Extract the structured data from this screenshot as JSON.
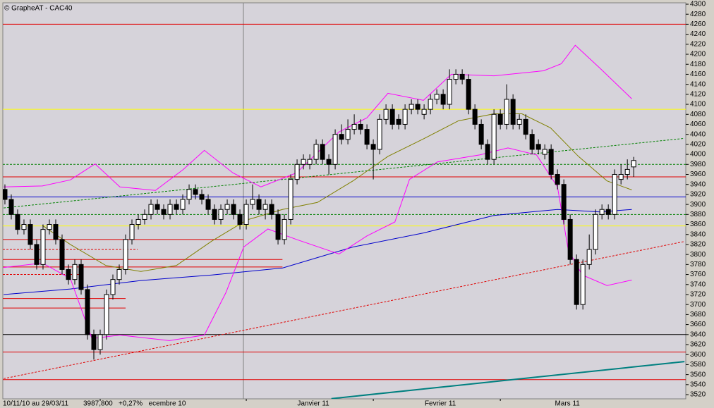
{
  "chart_data": {
    "type": "candlestick",
    "title": "© GrapheAT - CAC40",
    "period": "10/11/10 au 29/03/11",
    "last": "3987,800",
    "change": "+0,27%",
    "xlim": [
      -0.33,
      107.2
    ],
    "ylim": [
      3511.6,
      4302.8
    ],
    "yticks": [
      3520,
      3540,
      3560,
      3580,
      3600,
      3620,
      3640,
      3660,
      3680,
      3700,
      3720,
      3740,
      3760,
      3780,
      3800,
      3820,
      3840,
      3860,
      3880,
      3900,
      3920,
      3940,
      3960,
      3980,
      4000,
      4020,
      4040,
      4060,
      4080,
      4100,
      4120,
      4140,
      4160,
      4180,
      4200,
      4220,
      4240,
      4260,
      4280,
      4300
    ],
    "xticks": [
      {
        "value": 15,
        "label": "ecembre 10"
      },
      {
        "value": 38,
        "label": "Janvier 11"
      },
      {
        "value": 58,
        "label": "Fevrier 11"
      },
      {
        "value": 78,
        "label": "Mars 11"
      }
    ],
    "up_color": "#ffffff",
    "down_color": "#000000",
    "open": [
      3930,
      3910,
      3880,
      3850,
      3860,
      3820,
      3780,
      3850,
      3860,
      3830,
      3770,
      3750,
      3780,
      3730,
      3640,
      3610,
      3640,
      3720,
      3750,
      3770,
      3830,
      3860,
      3870,
      3880,
      3900,
      3890,
      3880,
      3900,
      3890,
      3910,
      3930,
      3920,
      3910,
      3890,
      3870,
      3890,
      3900,
      3880,
      3860,
      3900,
      3910,
      3890,
      3900,
      3880,
      3830,
      3870,
      3950,
      3980,
      3980,
      3990,
      4020,
      3990,
      3980,
      4040,
      4030,
      4050,
      4060,
      4050,
      4020,
      4010,
      4070,
      4090,
      4070,
      4060,
      4090,
      4100,
      4080,
      4090,
      4110,
      4120,
      4100,
      4150,
      4160,
      4150,
      4090,
      4060,
      4020,
      3990,
      4080,
      4060,
      4110,
      4060,
      4070,
      4040,
      4020,
      4000,
      4010,
      3960,
      3940,
      3870,
      3790,
      3700,
      3780,
      3810,
      3880,
      3890,
      3880,
      3950,
      3960,
      3975
    ],
    "high": [
      3940,
      3920,
      3890,
      3870,
      3870,
      3830,
      3860,
      3870,
      3870,
      3840,
      3780,
      3790,
      3790,
      3740,
      3650,
      3650,
      3730,
      3760,
      3780,
      3840,
      3870,
      3880,
      3890,
      3910,
      3910,
      3900,
      3910,
      3910,
      3920,
      3940,
      3940,
      3930,
      3920,
      3900,
      3900,
      3910,
      3910,
      3890,
      3910,
      3940,
      3920,
      3910,
      3910,
      3890,
      3880,
      3960,
      3990,
      4000,
      4000,
      4030,
      4030,
      4000,
      4050,
      4060,
      4070,
      4080,
      4070,
      4060,
      4030,
      4080,
      4100,
      4100,
      4080,
      4100,
      4110,
      4110,
      4100,
      4120,
      4130,
      4130,
      4170,
      4170,
      4170,
      4160,
      4100,
      4070,
      4030,
      4090,
      4090,
      4140,
      4120,
      4080,
      4080,
      4050,
      4030,
      4020,
      4020,
      3970,
      3950,
      3880,
      3800,
      3790,
      3840,
      3890,
      3900,
      3900,
      3970,
      3980,
      3990,
      3995
    ],
    "low": [
      3900,
      3870,
      3840,
      3840,
      3810,
      3770,
      3770,
      3840,
      3820,
      3760,
      3740,
      3740,
      3720,
      3630,
      3590,
      3600,
      3630,
      3710,
      3740,
      3760,
      3820,
      3850,
      3860,
      3870,
      3880,
      3870,
      3870,
      3880,
      3880,
      3900,
      3910,
      3900,
      3880,
      3860,
      3860,
      3880,
      3870,
      3850,
      3850,
      3890,
      3880,
      3870,
      3870,
      3820,
      3820,
      3860,
      3940,
      3970,
      3970,
      3980,
      3980,
      3960,
      3970,
      4020,
      4020,
      4040,
      4040,
      4010,
      3950,
      4000,
      4060,
      4050,
      4050,
      4050,
      4080,
      4080,
      4070,
      4080,
      4100,
      4090,
      4090,
      4140,
      4140,
      4080,
      4050,
      4010,
      3980,
      3980,
      4050,
      4050,
      4050,
      4050,
      4030,
      4000,
      4000,
      3990,
      3950,
      3930,
      3860,
      3780,
      3690,
      3690,
      3770,
      3800,
      3870,
      3870,
      3870,
      3940,
      3950,
      3955
    ],
    "close": [
      3910,
      3880,
      3850,
      3860,
      3820,
      3780,
      3850,
      3860,
      3830,
      3770,
      3750,
      3780,
      3730,
      3640,
      3610,
      3640,
      3720,
      3750,
      3770,
      3830,
      3860,
      3870,
      3880,
      3900,
      3890,
      3880,
      3900,
      3890,
      3910,
      3930,
      3920,
      3910,
      3890,
      3870,
      3890,
      3900,
      3880,
      3860,
      3900,
      3910,
      3890,
      3900,
      3880,
      3830,
      3870,
      3950,
      3980,
      3990,
      3990,
      4020,
      3990,
      3980,
      4040,
      4030,
      4050,
      4060,
      4050,
      4020,
      4010,
      4070,
      4090,
      4060,
      4060,
      4090,
      4100,
      4090,
      4090,
      4110,
      4120,
      4100,
      4150,
      4160,
      4150,
      4090,
      4060,
      4020,
      3990,
      4080,
      4060,
      4110,
      4060,
      4070,
      4040,
      4010,
      4010,
      4010,
      3960,
      3940,
      3870,
      3790,
      3700,
      3780,
      3810,
      3880,
      3890,
      3880,
      3960,
      3960,
      3970,
      3987.8
    ],
    "overlays": [
      {
        "color": "#0000cc",
        "x": [
          -0.2,
          10.3,
          21.4,
          32.6,
          43.7,
          54.8,
          65.9,
          77,
          87,
          93.7,
          98.7
        ],
        "values": [
          3720,
          3731,
          3748,
          3759,
          3773,
          3815,
          3843,
          3878,
          3890,
          3885,
          3890
        ]
      },
      {
        "color": "#808000",
        "x": [
          5.9,
          10.3,
          15.9,
          21.4,
          27,
          32.6,
          38.1,
          43.7,
          49.2,
          54.8,
          60.3,
          65.9,
          71.4,
          77,
          81.4,
          85.9,
          90.3,
          94.8,
          98.7
        ],
        "values": [
          3858,
          3820,
          3778,
          3766,
          3778,
          3827,
          3869,
          3890,
          3904,
          3947,
          3996,
          4031,
          4067,
          4081,
          4081,
          4053,
          3996,
          3947,
          3929
        ]
      },
      {
        "color": "#ff00ff",
        "x": [
          -0.2,
          5.9,
          10.3,
          14.2,
          18.1,
          23.7,
          28.1,
          31.4,
          35.9,
          40.3,
          45.9,
          52.6,
          57,
          60.3,
          65.9,
          70.3,
          77,
          84.8,
          87.6,
          89.8,
          93.7,
          98.7
        ],
        "values": [
          3935,
          3937,
          3949,
          3981,
          3935,
          3928,
          3970,
          4008,
          3963,
          3935,
          3963,
          4045,
          4073,
          4122,
          4108,
          4160,
          4157,
          4167,
          4181,
          4218,
          4172,
          4111
        ]
      },
      {
        "color": "#ff00ff",
        "x": [
          -0.2,
          5.9,
          10.3,
          13.7,
          18.1,
          25.9,
          31.4,
          34.8,
          37.6,
          41.4,
          45.9,
          52.6,
          57,
          61.4,
          63.7,
          68.1,
          74.8,
          79.2,
          83.7,
          87,
          88.7,
          90.9,
          94.8,
          98.7
        ],
        "values": [
          3774,
          3783,
          3752,
          3632,
          3639,
          3628,
          3639,
          3724,
          3815,
          3851,
          3830,
          3801,
          3837,
          3865,
          3950,
          3985,
          3999,
          4013,
          3999,
          3935,
          3809,
          3759,
          3738,
          3749
        ]
      }
    ],
    "levels": [
      {
        "value": 4260,
        "color": "#e00000",
        "dash": false,
        "x_end": 107.2
      },
      {
        "value": 4090,
        "color": "#ffff00",
        "dash": false,
        "x_end": 107.2
      },
      {
        "value": 3980,
        "color": "#008000",
        "dash": true,
        "x_end": 107.2
      },
      {
        "value": 3955,
        "color": "#e00000",
        "dash": false,
        "x_end": 107.2
      },
      {
        "value": 3915,
        "color": "#0000cc",
        "dash": false,
        "x_end": 107.2
      },
      {
        "value": 3880,
        "color": "#008000",
        "dash": true,
        "x_end": 107.2
      },
      {
        "value": 3857,
        "color": "#ffff00",
        "dash": false,
        "x_end": 107.2
      },
      {
        "value": 3830,
        "color": "#e00000",
        "dash": false,
        "x_end": 37.6
      },
      {
        "value": 3810,
        "color": "#e00000",
        "dash": true,
        "x_end": 20.9
      },
      {
        "value": 3790,
        "color": "#e00000",
        "dash": false,
        "x_end": 43.7
      },
      {
        "value": 3775,
        "color": "#e00000",
        "dash": false,
        "x_end": 43.7
      },
      {
        "value": 3760,
        "color": "#e00000",
        "dash": true,
        "x_end": 12
      },
      {
        "value": 3712,
        "color": "#e00000",
        "dash": false,
        "x_end": 19
      },
      {
        "value": 3693,
        "color": "#e00000",
        "dash": false,
        "x_end": 19
      },
      {
        "value": 3640,
        "color": "#000000",
        "dash": false,
        "x_end": 107.2
      },
      {
        "value": 3605,
        "color": "#e00000",
        "dash": false,
        "x_end": 107.2
      },
      {
        "value": 3550,
        "color": "#e00000",
        "dash": false,
        "x_end": 107.2
      }
    ],
    "trendlines": [
      {
        "color": "#008000",
        "dash": true,
        "x": [
          -0.2,
          107
        ],
        "values": [
          3893,
          4032
        ]
      },
      {
        "color": "#e00000",
        "dash": true,
        "x": [
          -0.2,
          107
        ],
        "values": [
          3552,
          3826
        ]
      },
      {
        "color": "#008080",
        "dash": false,
        "x": [
          51.4,
          107
        ],
        "values": [
          3512,
          3586
        ]
      }
    ]
  }
}
